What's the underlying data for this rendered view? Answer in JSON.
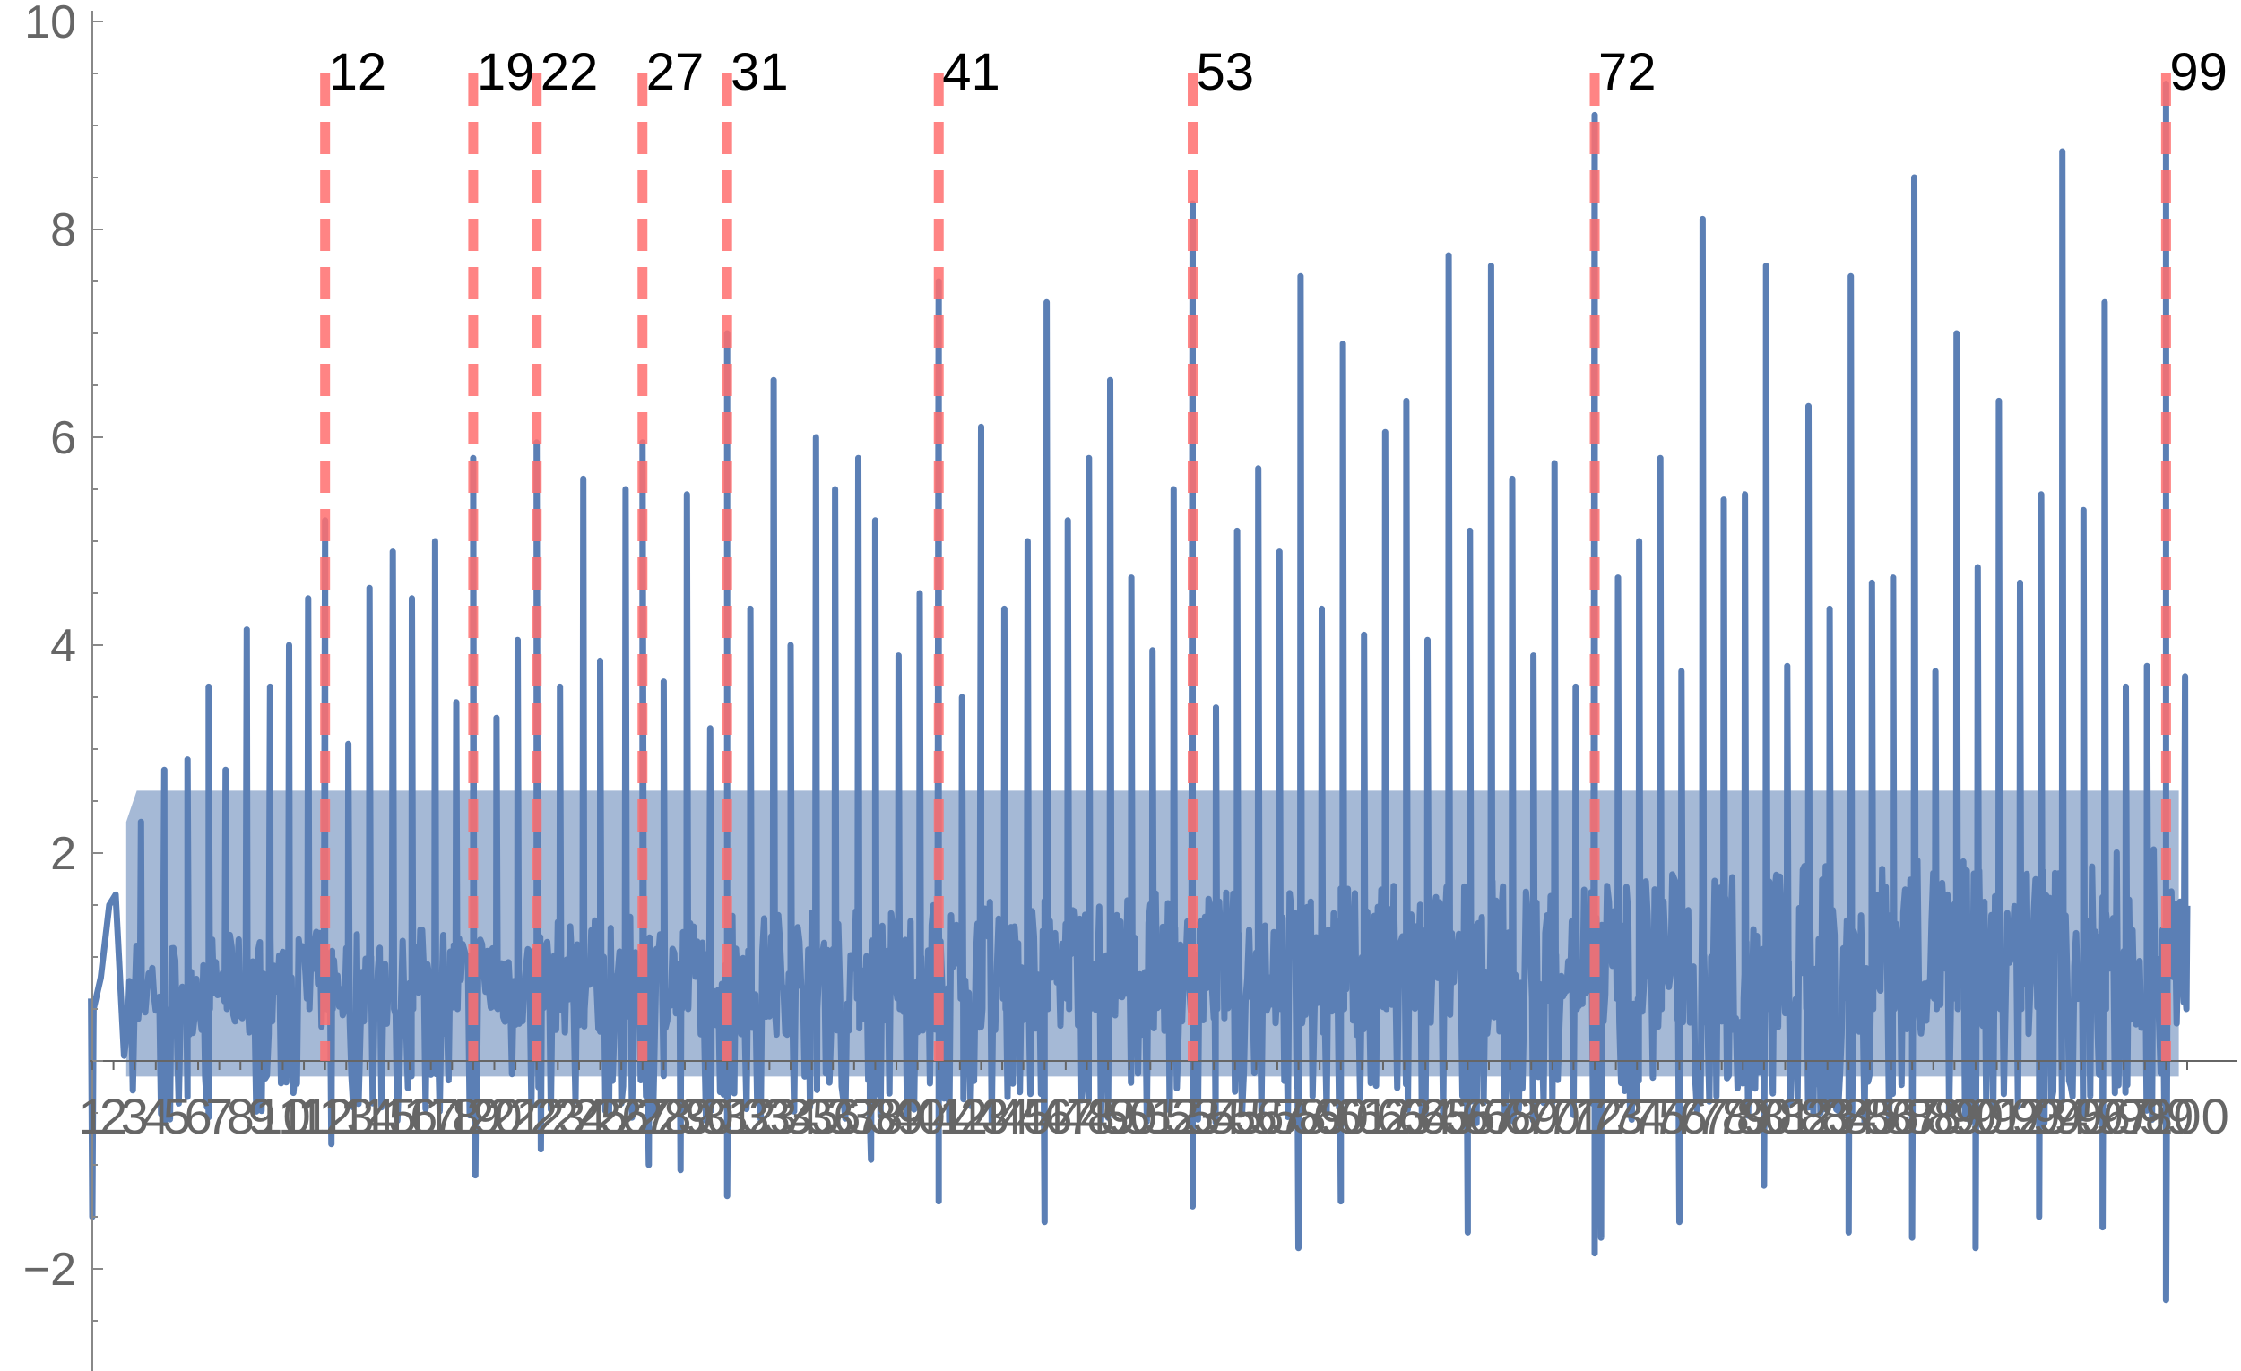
{
  "chart_data": {
    "type": "line",
    "title": "",
    "xlabel": "",
    "ylabel": "",
    "xlim": [
      1,
      100
    ],
    "ylim": [
      -3,
      10
    ],
    "yticks": [
      -2,
      2,
      4,
      6,
      8,
      10
    ],
    "xticks": [
      1,
      2,
      3,
      4,
      5,
      6,
      7,
      8,
      9,
      10,
      11,
      12,
      13,
      14,
      15,
      16,
      17,
      18,
      19,
      20,
      21,
      22,
      23,
      24,
      25,
      26,
      27,
      28,
      29,
      30,
      31,
      32,
      33,
      34,
      35,
      36,
      37,
      38,
      39,
      40,
      41,
      42,
      43,
      44,
      45,
      46,
      47,
      48,
      49,
      50,
      51,
      52,
      53,
      54,
      55,
      56,
      57,
      58,
      59,
      60,
      61,
      62,
      63,
      64,
      65,
      66,
      67,
      68,
      69,
      70,
      71,
      72,
      73,
      74,
      75,
      76,
      77,
      78,
      79,
      80,
      81,
      82,
      83,
      84,
      85,
      86,
      87,
      88,
      89,
      90,
      91,
      92,
      93,
      94,
      95,
      96,
      97,
      98,
      99,
      100
    ],
    "grid": false,
    "series": [
      {
        "color": "#5b7fb5",
        "description": "densely oscillating curve with tall spikes",
        "samples_per_unit": 12
      }
    ],
    "highlights": {
      "color": "#ff6f6f",
      "line_top": 9.5,
      "positions": [
        12,
        19,
        22,
        27,
        31,
        41,
        53,
        72,
        99
      ],
      "labels": [
        "12",
        "19",
        "22",
        "27",
        "31",
        "41",
        "53",
        "72",
        "99"
      ],
      "peak_values": [
        5.2,
        5.8,
        5.95,
        5.95,
        7.0,
        7.5,
        8.25,
        9.1,
        9.4
      ]
    },
    "spikes": [
      {
        "x": 3.3,
        "y": 2.3
      },
      {
        "x": 4.4,
        "y": 2.8
      },
      {
        "x": 5.5,
        "y": 2.9
      },
      {
        "x": 6.5,
        "y": 3.6
      },
      {
        "x": 7.3,
        "y": 2.8
      },
      {
        "x": 8.3,
        "y": 4.15
      },
      {
        "x": 9.4,
        "y": 3.6
      },
      {
        "x": 10.3,
        "y": 4.0
      },
      {
        "x": 11.2,
        "y": 4.45
      },
      {
        "x": 12.0,
        "y": 5.2
      },
      {
        "x": 13.1,
        "y": 3.05
      },
      {
        "x": 14.1,
        "y": 4.55
      },
      {
        "x": 15.2,
        "y": 4.9
      },
      {
        "x": 16.1,
        "y": 4.45
      },
      {
        "x": 17.2,
        "y": 5.0
      },
      {
        "x": 18.2,
        "y": 3.45
      },
      {
        "x": 19.0,
        "y": 5.8
      },
      {
        "x": 20.1,
        "y": 3.3
      },
      {
        "x": 21.1,
        "y": 4.05
      },
      {
        "x": 22.0,
        "y": 5.95
      },
      {
        "x": 23.1,
        "y": 3.6
      },
      {
        "x": 24.2,
        "y": 5.6
      },
      {
        "x": 25.0,
        "y": 3.85
      },
      {
        "x": 26.2,
        "y": 5.5
      },
      {
        "x": 27.0,
        "y": 5.95
      },
      {
        "x": 28.0,
        "y": 3.65
      },
      {
        "x": 29.1,
        "y": 5.45
      },
      {
        "x": 30.2,
        "y": 3.2
      },
      {
        "x": 31.0,
        "y": 7.0
      },
      {
        "x": 32.1,
        "y": 4.35
      },
      {
        "x": 33.2,
        "y": 6.55
      },
      {
        "x": 34.0,
        "y": 4.0
      },
      {
        "x": 35.2,
        "y": 6.0
      },
      {
        "x": 36.1,
        "y": 5.5
      },
      {
        "x": 37.2,
        "y": 5.8
      },
      {
        "x": 38.0,
        "y": 5.2
      },
      {
        "x": 39.1,
        "y": 3.9
      },
      {
        "x": 40.1,
        "y": 4.5
      },
      {
        "x": 41.0,
        "y": 7.5
      },
      {
        "x": 42.1,
        "y": 3.5
      },
      {
        "x": 43.0,
        "y": 6.1
      },
      {
        "x": 44.1,
        "y": 4.35
      },
      {
        "x": 45.2,
        "y": 5.0
      },
      {
        "x": 46.1,
        "y": 7.3
      },
      {
        "x": 47.1,
        "y": 5.2
      },
      {
        "x": 48.1,
        "y": 5.8
      },
      {
        "x": 49.1,
        "y": 6.55
      },
      {
        "x": 50.1,
        "y": 4.65
      },
      {
        "x": 51.1,
        "y": 3.95
      },
      {
        "x": 52.1,
        "y": 5.5
      },
      {
        "x": 53.0,
        "y": 8.25
      },
      {
        "x": 54.1,
        "y": 3.4
      },
      {
        "x": 55.1,
        "y": 5.1
      },
      {
        "x": 56.1,
        "y": 5.7
      },
      {
        "x": 57.1,
        "y": 4.9
      },
      {
        "x": 58.1,
        "y": 7.55
      },
      {
        "x": 59.1,
        "y": 4.35
      },
      {
        "x": 60.1,
        "y": 6.9
      },
      {
        "x": 61.1,
        "y": 4.1
      },
      {
        "x": 62.1,
        "y": 6.05
      },
      {
        "x": 63.1,
        "y": 6.35
      },
      {
        "x": 64.1,
        "y": 4.05
      },
      {
        "x": 65.1,
        "y": 7.75
      },
      {
        "x": 66.1,
        "y": 5.1
      },
      {
        "x": 67.1,
        "y": 7.65
      },
      {
        "x": 68.1,
        "y": 5.6
      },
      {
        "x": 69.1,
        "y": 3.9
      },
      {
        "x": 70.1,
        "y": 5.75
      },
      {
        "x": 71.1,
        "y": 3.6
      },
      {
        "x": 72.0,
        "y": 9.1
      },
      {
        "x": 73.1,
        "y": 4.65
      },
      {
        "x": 74.1,
        "y": 5.0
      },
      {
        "x": 75.1,
        "y": 5.8
      },
      {
        "x": 76.1,
        "y": 3.75
      },
      {
        "x": 77.1,
        "y": 8.1
      },
      {
        "x": 78.1,
        "y": 5.4
      },
      {
        "x": 79.1,
        "y": 5.45
      },
      {
        "x": 80.1,
        "y": 7.65
      },
      {
        "x": 81.1,
        "y": 3.8
      },
      {
        "x": 82.1,
        "y": 6.3
      },
      {
        "x": 83.1,
        "y": 4.35
      },
      {
        "x": 84.1,
        "y": 7.55
      },
      {
        "x": 85.1,
        "y": 4.6
      },
      {
        "x": 86.1,
        "y": 4.65
      },
      {
        "x": 87.1,
        "y": 8.5
      },
      {
        "x": 88.1,
        "y": 3.75
      },
      {
        "x": 89.1,
        "y": 7.0
      },
      {
        "x": 90.1,
        "y": 4.75
      },
      {
        "x": 91.1,
        "y": 6.35
      },
      {
        "x": 92.1,
        "y": 4.6
      },
      {
        "x": 93.1,
        "y": 5.45
      },
      {
        "x": 94.1,
        "y": 8.75
      },
      {
        "x": 95.1,
        "y": 5.3
      },
      {
        "x": 96.1,
        "y": 7.3
      },
      {
        "x": 97.1,
        "y": 3.6
      },
      {
        "x": 98.1,
        "y": 3.8
      },
      {
        "x": 99.0,
        "y": 9.4
      },
      {
        "x": 99.9,
        "y": 3.7
      }
    ],
    "dips": [
      {
        "x": 1.0,
        "y": -1.5
      },
      {
        "x": 12.3,
        "y": -0.8
      },
      {
        "x": 19.1,
        "y": -1.1
      },
      {
        "x": 22.2,
        "y": -0.85
      },
      {
        "x": 27.3,
        "y": -1.0
      },
      {
        "x": 28.8,
        "y": -1.05
      },
      {
        "x": 31.0,
        "y": -1.3
      },
      {
        "x": 37.8,
        "y": -0.95
      },
      {
        "x": 41.0,
        "y": -1.35
      },
      {
        "x": 46.0,
        "y": -1.55
      },
      {
        "x": 53.0,
        "y": -1.4
      },
      {
        "x": 58.0,
        "y": -1.8
      },
      {
        "x": 60.0,
        "y": -1.35
      },
      {
        "x": 66.0,
        "y": -1.65
      },
      {
        "x": 72.0,
        "y": -1.85
      },
      {
        "x": 72.3,
        "y": -1.7
      },
      {
        "x": 76.0,
        "y": -1.55
      },
      {
        "x": 80.0,
        "y": -1.2
      },
      {
        "x": 84.0,
        "y": -1.65
      },
      {
        "x": 87.0,
        "y": -1.7
      },
      {
        "x": 90.0,
        "y": -1.8
      },
      {
        "x": 93.0,
        "y": -1.5
      },
      {
        "x": 96.0,
        "y": -1.6
      },
      {
        "x": 99.0,
        "y": -2.3
      }
    ]
  }
}
